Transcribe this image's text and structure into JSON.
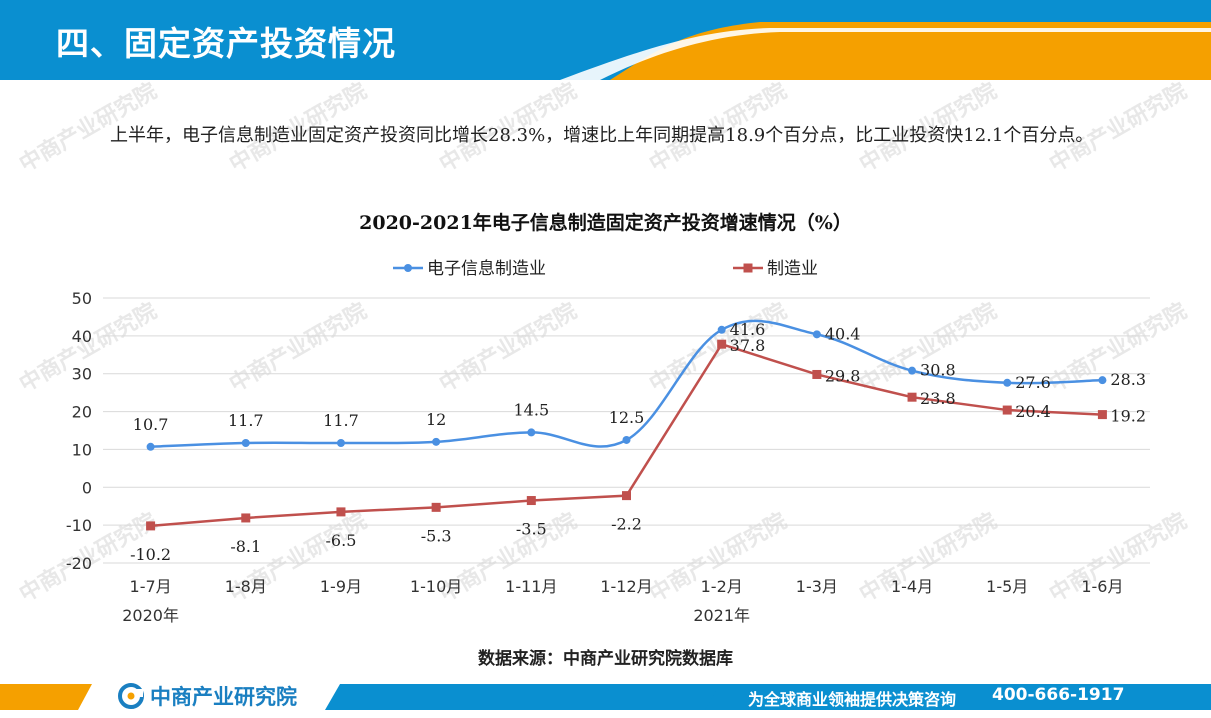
{
  "header": {
    "title": "四、固定资产投资情况"
  },
  "intro": "上半年，电子信息制造业固定资产投资同比增长28.3%，增速比上年同期提高18.9个百分点，比工业投资快12.1个百分点。",
  "source": "数据来源：中商产业研究院数据库",
  "footer": {
    "logo_text": "中商产业研究院",
    "slogan": "为全球商业领袖提供决策咨询",
    "phone": "400-666-1917"
  },
  "watermark": "中商产业研究院",
  "colors": {
    "header_blue": "#0a8fd0",
    "accent_orange": "#f5a000",
    "series1": "#4a90e2",
    "series2": "#c0504d"
  },
  "chart_data": {
    "type": "line",
    "title": "2020-2021年电子信息制造固定资产投资增速情况（%）",
    "categories": [
      "1-7月",
      "1-8月",
      "1-9月",
      "1-10月",
      "1-11月",
      "1-12月",
      "1-2月",
      "1-3月",
      "1-4月",
      "1-5月",
      "1-6月"
    ],
    "year_labels": [
      {
        "label": "2020年",
        "at_category": 0
      },
      {
        "label": "2021年",
        "at_category": 6
      }
    ],
    "ylim": [
      -20,
      50
    ],
    "yticks": [
      50,
      40,
      30,
      20,
      10,
      0,
      -10,
      -20
    ],
    "grid": true,
    "legend_position": "top",
    "series": [
      {
        "name": "电子信息制造业",
        "color": "#4a90e2",
        "marker": "circle",
        "smooth": true,
        "values": [
          10.7,
          11.7,
          11.7,
          12,
          14.5,
          12.5,
          41.6,
          40.4,
          30.8,
          27.6,
          28.3
        ],
        "labels": [
          "10.7",
          "11.7",
          "11.7",
          "12",
          "14.5",
          "12.5",
          "41.6",
          "40.4",
          "30.8",
          "27.6",
          "28.3"
        ]
      },
      {
        "name": "制造业",
        "color": "#c0504d",
        "marker": "square",
        "smooth": false,
        "values": [
          -10.2,
          -8.1,
          -6.5,
          -5.3,
          -3.5,
          -2.2,
          37.8,
          29.8,
          23.8,
          20.4,
          19.2
        ],
        "labels": [
          "-10.2",
          "-8.1",
          "-6.5",
          "-5.3",
          "-3.5",
          "-2.2",
          "37.8",
          "29.8",
          "23.8",
          "20.4",
          "19.2"
        ]
      }
    ]
  }
}
